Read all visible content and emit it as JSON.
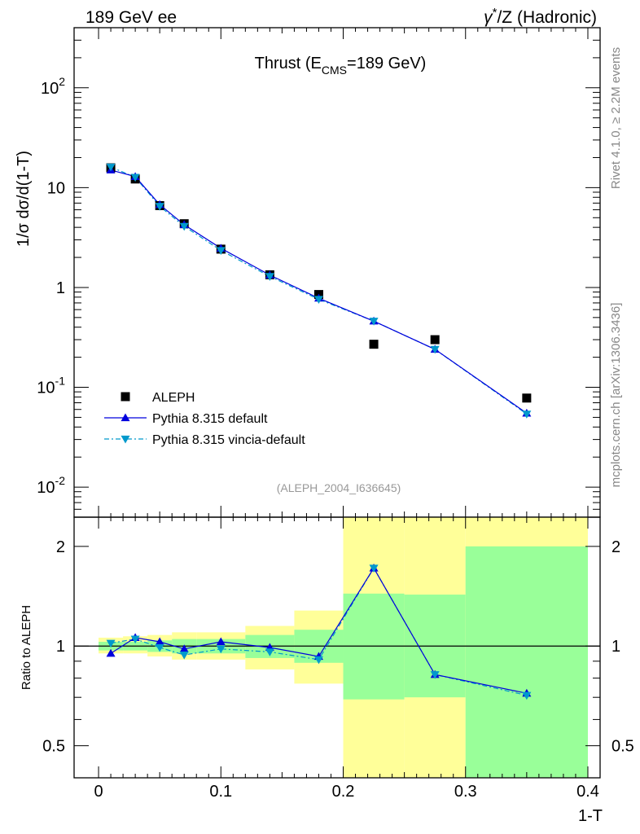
{
  "header": {
    "left": "189 GeV ee",
    "right_sup": "*",
    "right_prefix": "γ",
    "right_suffix": "/Z (Hadronic)"
  },
  "side": {
    "rivet": "Rivet 4.1.0, ≥ 2.2M events",
    "mcplots": "mcplots.cern.ch [arXiv:1306.3436]"
  },
  "chart_data": [
    {
      "type": "line",
      "title_main": "Thrust (E",
      "title_sub": "CMS",
      "title_end": "=189 GeV)",
      "ylabel": "1/σ  dσ/d(1-T)",
      "yscale": "log",
      "ylim": [
        0.005,
        400
      ],
      "xlim": [
        -0.02,
        0.41
      ],
      "analysis_tag": "(ALEPH_2004_I636645)",
      "y_ticks": [
        {
          "value": 0.01,
          "base": "10",
          "exp": "-2"
        },
        {
          "value": 0.1,
          "base": "10",
          "exp": "-1"
        },
        {
          "value": 1,
          "base": "1",
          "exp": ""
        },
        {
          "value": 10,
          "base": "10",
          "exp": ""
        },
        {
          "value": 100,
          "base": "10",
          "exp": "2"
        }
      ],
      "legend": [
        {
          "name": "ALEPH",
          "marker": "square",
          "color": "#000000"
        },
        {
          "name": "Pythia 8.315 default",
          "marker": "triangle-up",
          "color": "#0000dd"
        },
        {
          "name": "Pythia 8.315 vincia-default",
          "marker": "triangle-down",
          "color": "#0099cc"
        }
      ],
      "series": [
        {
          "name": "ALEPH",
          "x": [
            0.01,
            0.03,
            0.05,
            0.07,
            0.1,
            0.14,
            0.18,
            0.225,
            0.275,
            0.35
          ],
          "y": [
            15.8,
            12.2,
            6.6,
            4.35,
            2.42,
            1.34,
            0.85,
            0.27,
            0.3,
            0.078
          ]
        },
        {
          "name": "Pythia 8.315 default",
          "x": [
            0.01,
            0.03,
            0.05,
            0.07,
            0.1,
            0.14,
            0.18,
            0.225,
            0.275,
            0.35
          ],
          "y": [
            15.0,
            12.9,
            6.75,
            4.25,
            2.47,
            1.33,
            0.78,
            0.46,
            0.24,
            0.055
          ]
        },
        {
          "name": "Pythia 8.315 vincia-default",
          "x": [
            0.01,
            0.03,
            0.05,
            0.07,
            0.1,
            0.14,
            0.18,
            0.225,
            0.275,
            0.35
          ],
          "y": [
            16.1,
            12.7,
            6.5,
            4.1,
            2.35,
            1.29,
            0.76,
            0.46,
            0.24,
            0.054
          ]
        }
      ]
    },
    {
      "type": "line",
      "ylabel": "Ratio to ALEPH",
      "xlabel": "1-T",
      "yscale": "log",
      "ylim": [
        0.4,
        2.45
      ],
      "xlim": [
        -0.02,
        0.41
      ],
      "y_ticks": [
        0.5,
        1,
        2
      ],
      "y_tick_labels": [
        "0.5",
        "1",
        "2"
      ],
      "x_ticks": [
        0,
        0.1,
        0.2,
        0.3,
        0.4
      ],
      "x_tick_labels": [
        "0",
        "0.1",
        "0.2",
        "0.3",
        "0.4"
      ],
      "reference_line": 1,
      "uncertainty_bands": [
        {
          "x_lo": 0.0,
          "x_hi": 0.02,
          "inner": [
            0.97,
            1.03
          ],
          "outer": [
            0.95,
            1.06
          ]
        },
        {
          "x_lo": 0.02,
          "x_hi": 0.04,
          "inner": [
            0.97,
            1.03
          ],
          "outer": [
            0.95,
            1.07
          ]
        },
        {
          "x_lo": 0.04,
          "x_hi": 0.06,
          "inner": [
            0.96,
            1.04
          ],
          "outer": [
            0.93,
            1.08
          ]
        },
        {
          "x_lo": 0.06,
          "x_hi": 0.08,
          "inner": [
            0.95,
            1.05
          ],
          "outer": [
            0.91,
            1.1
          ]
        },
        {
          "x_lo": 0.08,
          "x_hi": 0.12,
          "inner": [
            0.95,
            1.05
          ],
          "outer": [
            0.91,
            1.1
          ]
        },
        {
          "x_lo": 0.12,
          "x_hi": 0.16,
          "inner": [
            0.92,
            1.08
          ],
          "outer": [
            0.85,
            1.15
          ]
        },
        {
          "x_lo": 0.16,
          "x_hi": 0.2,
          "inner": [
            0.89,
            1.12
          ],
          "outer": [
            0.77,
            1.28
          ]
        },
        {
          "x_lo": 0.2,
          "x_hi": 0.25,
          "inner": [
            0.69,
            1.44
          ],
          "outer": [
            0.36,
            2.8
          ]
        },
        {
          "x_lo": 0.25,
          "x_hi": 0.3,
          "inner": [
            0.7,
            1.43
          ],
          "outer": [
            0.36,
            2.8
          ]
        },
        {
          "x_lo": 0.3,
          "x_hi": 0.4,
          "inner": [
            0.36,
            2.0
          ],
          "outer": [
            0.36,
            2.8
          ]
        }
      ],
      "series": [
        {
          "name": "Pythia 8.315 default",
          "x": [
            0.01,
            0.03,
            0.05,
            0.07,
            0.1,
            0.14,
            0.18,
            0.225,
            0.275,
            0.35
          ],
          "y": [
            0.95,
            1.06,
            1.03,
            0.98,
            1.03,
            0.99,
            0.93,
            1.72,
            0.82,
            0.72
          ]
        },
        {
          "name": "Pythia 8.315 vincia-default",
          "x": [
            0.01,
            0.03,
            0.05,
            0.07,
            0.1,
            0.14,
            0.18,
            0.225,
            0.275,
            0.35
          ],
          "y": [
            1.02,
            1.05,
            0.99,
            0.94,
            0.98,
            0.96,
            0.91,
            1.72,
            0.82,
            0.71
          ]
        }
      ]
    }
  ]
}
